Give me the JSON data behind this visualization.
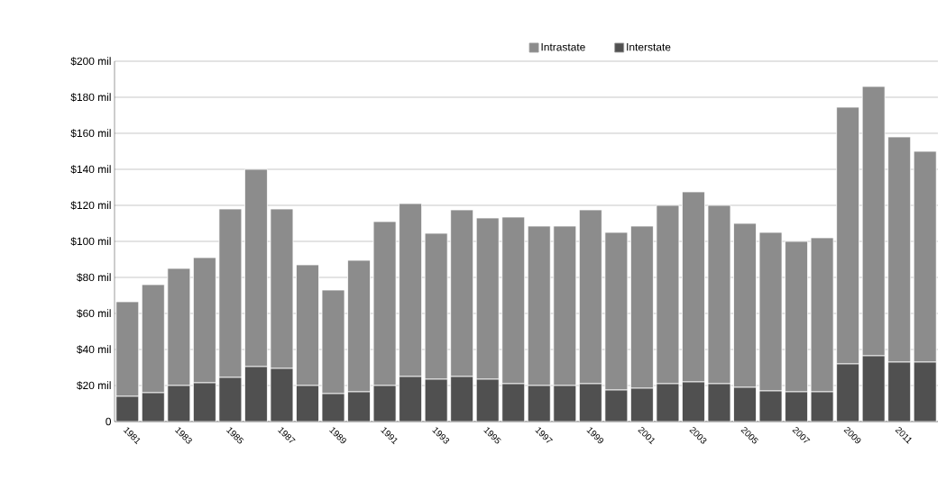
{
  "chart_data": {
    "type": "bar",
    "stacked": true,
    "grid": "y",
    "legend": "top",
    "categories": [
      "1981",
      null,
      "1983",
      null,
      "1985",
      null,
      "1987",
      null,
      "1989",
      null,
      "1991",
      null,
      "1993",
      null,
      "1995",
      null,
      "1997",
      null,
      "1999",
      null,
      "2001",
      null,
      "2003",
      null,
      "2005",
      null,
      "2007",
      null,
      "2009",
      null,
      "2011",
      null
    ],
    "ylim": [
      0,
      200
    ],
    "yticks": [
      0,
      {
        "value": 20,
        "label": "$20 mil"
      },
      {
        "value": 40,
        "label": "$40 mil"
      },
      {
        "value": 60,
        "label": "$60 mil"
      },
      {
        "value": 80,
        "label": "$80 mil"
      },
      {
        "value": 100,
        "label": "$100 mil"
      },
      {
        "value": 120,
        "label": "$120 mil"
      },
      {
        "value": 140,
        "label": "$140 mil"
      },
      {
        "value": 160,
        "label": "$160 mil"
      },
      {
        "value": 180,
        "label": "$180 mil"
      },
      {
        "value": 200,
        "label": "$200 mil"
      }
    ],
    "series": [
      {
        "name": "Interstate",
        "color": "#505050",
        "values": [
          14,
          16,
          20,
          21.5,
          24.5,
          30.5,
          29.5,
          20,
          15.5,
          16.5,
          20,
          25,
          23.5,
          25,
          23.5,
          21,
          20,
          20,
          21,
          17.5,
          18.5,
          21,
          22,
          21,
          19,
          17,
          16.5,
          16.5,
          32,
          36.5,
          33,
          33
        ]
      },
      {
        "name": "Intrastate",
        "color": "#8c8c8c",
        "values": [
          52.5,
          60,
          65,
          69.5,
          93.5,
          109.5,
          88.5,
          67,
          57.5,
          73,
          91,
          96,
          81,
          92.5,
          89.5,
          92.5,
          88.5,
          88.5,
          96.5,
          87.5,
          90,
          99,
          105.5,
          99,
          91,
          88,
          83.5,
          85.5,
          142.5,
          149.5,
          125,
          117
        ]
      }
    ]
  }
}
